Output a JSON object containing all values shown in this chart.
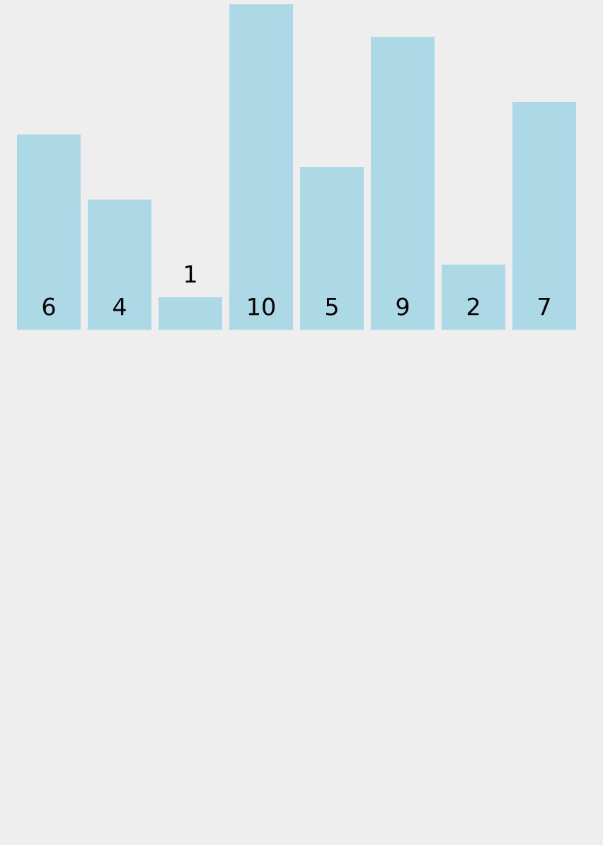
{
  "chart_data": {
    "type": "bar",
    "categories": [
      null,
      null,
      null,
      null,
      null,
      null,
      null,
      null
    ],
    "values": [
      6,
      4,
      1,
      10,
      5,
      9,
      2,
      7
    ],
    "color": "#add8e6",
    "data_labels": true,
    "grid": false,
    "legend": false
  }
}
